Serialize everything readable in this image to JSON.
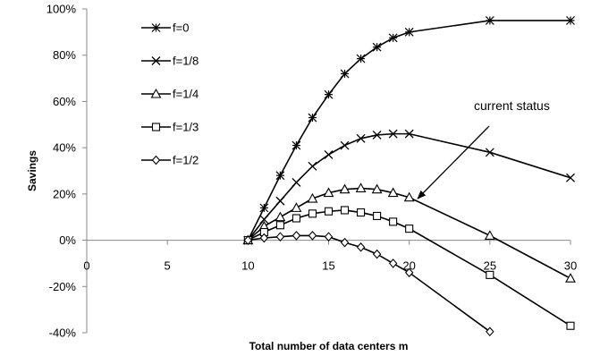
{
  "chart_data": {
    "type": "line",
    "title": "",
    "xlabel": "Total number of data centers m",
    "ylabel": "Savings",
    "xlim": [
      0,
      30
    ],
    "ylim": [
      -40,
      100
    ],
    "x_ticks": [
      0,
      5,
      10,
      15,
      20,
      25,
      30
    ],
    "y_ticks": [
      -40,
      -20,
      0,
      20,
      40,
      60,
      80,
      100
    ],
    "y_tick_format": "percent",
    "negative_tick_color": "#e00000",
    "grid": false,
    "legend_position": "top-left",
    "series": [
      {
        "name": "f=0",
        "marker": "asterisk",
        "x": [
          10,
          11,
          12,
          13,
          14,
          15,
          16,
          17,
          18,
          19,
          20,
          25,
          30
        ],
        "y": [
          0,
          14,
          28,
          41,
          53,
          63,
          72,
          78.5,
          83.5,
          87.5,
          90,
          95,
          95
        ]
      },
      {
        "name": "f=1/8",
        "marker": "x",
        "x": [
          10,
          11,
          12,
          13,
          14,
          15,
          16,
          17,
          18,
          19,
          20,
          25,
          30
        ],
        "y": [
          0,
          9,
          17,
          25,
          32,
          37,
          41,
          44,
          45.5,
          46,
          46,
          38,
          27
        ]
      },
      {
        "name": "f=1/4",
        "marker": "triangle",
        "x": [
          10,
          11,
          12,
          13,
          14,
          15,
          16,
          17,
          18,
          19,
          20,
          25,
          30
        ],
        "y": [
          0,
          6,
          10,
          14,
          18,
          20.5,
          22,
          22.5,
          22,
          20.5,
          18.5,
          2,
          -16.5
        ]
      },
      {
        "name": "f=1/3",
        "marker": "square",
        "x": [
          10,
          11,
          12,
          13,
          14,
          15,
          16,
          17,
          18,
          19,
          20,
          25,
          30
        ],
        "y": [
          0,
          3.5,
          6.5,
          9.5,
          11.5,
          12.5,
          13,
          12,
          10.5,
          8,
          5,
          -15,
          -37
        ]
      },
      {
        "name": "f=1/2",
        "marker": "diamond",
        "x": [
          10,
          11,
          12,
          13,
          14,
          15,
          16,
          17,
          18,
          19,
          20,
          25
        ],
        "y": [
          0,
          1,
          1.5,
          2,
          2,
          1.5,
          -1,
          -3,
          -6,
          -10,
          -14,
          -39.5
        ]
      }
    ],
    "annotations": [
      {
        "text": "current status",
        "arrow_from": [
          22.5,
          50
        ],
        "arrow_to": [
          20.3,
          17
        ]
      }
    ]
  }
}
